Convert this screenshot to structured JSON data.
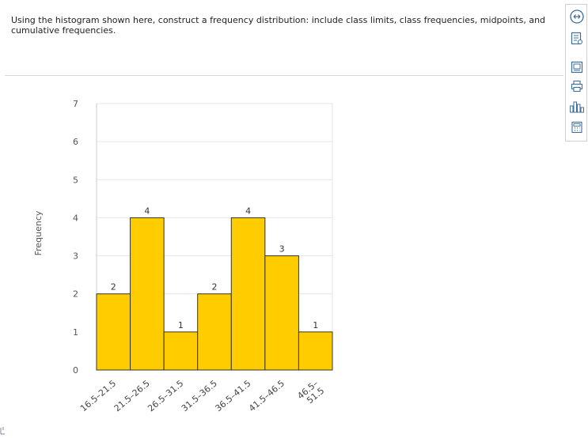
{
  "question": {
    "text": "Using the histogram shown here, construct a frequency distribution: include class limits, class frequencies, midpoints, and cumulative frequencies."
  },
  "chart_data": {
    "type": "bar",
    "categories": [
      "16.5–21.5",
      "21.5–26.5",
      "26.5–31.5",
      "31.5–36.5",
      "36.5–41.5",
      "41.5–46.5",
      "46.5–51.5"
    ],
    "category_lines": [
      [
        "16.5–21.5"
      ],
      [
        "21.5–26.5"
      ],
      [
        "26.5–31.5"
      ],
      [
        "31.5–36.5"
      ],
      [
        "36.5–41.5"
      ],
      [
        "41.5–46.5"
      ],
      [
        "46.5–",
        "51.5"
      ]
    ],
    "values": [
      2,
      4,
      1,
      2,
      4,
      3,
      1
    ],
    "title": "",
    "xlabel": "",
    "ylabel": "Frequency",
    "ylim": [
      0,
      7
    ],
    "yticks": [
      0,
      1,
      2,
      3,
      4,
      5,
      6,
      7
    ],
    "grid": true,
    "bar_color": "#ffcc00",
    "bar_edge_color": "#333333",
    "data_labels": true
  },
  "toolbar": {
    "icons": [
      "expand-icon",
      "data-table-icon",
      "image-icon",
      "print-icon",
      "bar-chart-icon",
      "calculator-icon"
    ]
  },
  "colors": {
    "accent": "#3c6e9e"
  }
}
